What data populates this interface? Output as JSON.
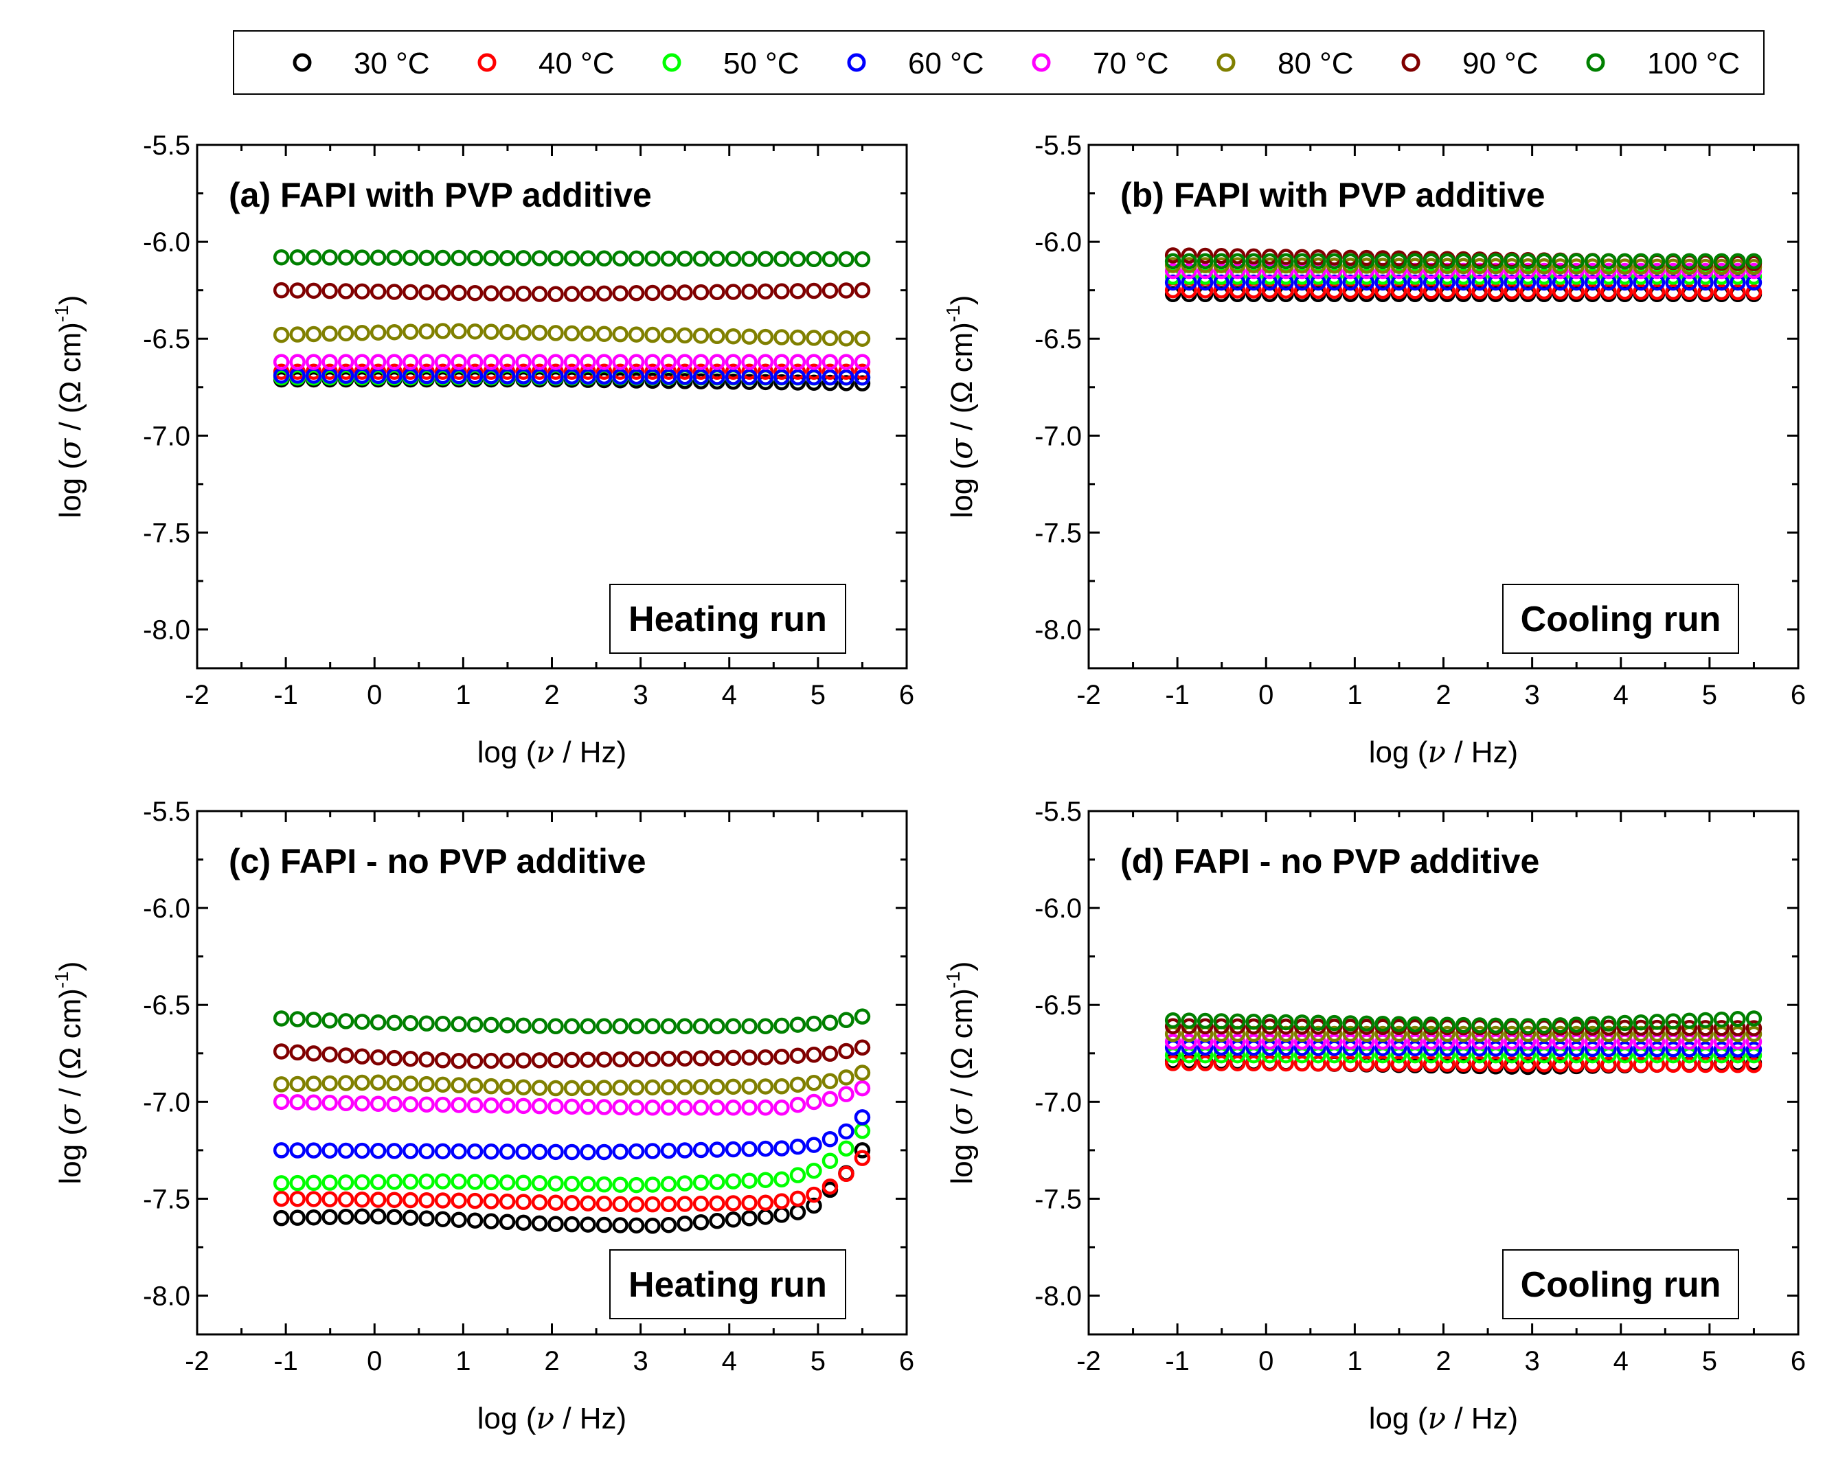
{
  "legend": {
    "entries": [
      {
        "label": "30 °C",
        "color": "#000000"
      },
      {
        "label": "40 °C",
        "color": "#ff0000"
      },
      {
        "label": "50 °C",
        "color": "#00ff00"
      },
      {
        "label": "60 °C",
        "color": "#0000ff"
      },
      {
        "label": "70 °C",
        "color": "#ff00ff"
      },
      {
        "label": "80 °C",
        "color": "#808000"
      },
      {
        "label": "90 °C",
        "color": "#800000"
      },
      {
        "label": "100 °C",
        "color": "#008000"
      }
    ]
  },
  "axis_titles": {
    "x_prefix": "log (",
    "x_symbol": "ν",
    "x_suffix": " / Hz)",
    "y_prefix": "log (",
    "y_symbol": "σ",
    "y_mid": " / (Ω cm)",
    "y_sup": "-1",
    "y_suffix": ")"
  },
  "chart_data": [
    {
      "type": "scatter",
      "title": "(a) FAPI with PVP additive",
      "annotation": "Heating run",
      "xlabel": "log (ν / Hz)",
      "ylabel": "log (σ / (Ω cm)-1)",
      "xlim": [
        -2,
        6
      ],
      "ylim": [
        -8.2,
        -5.5
      ],
      "x_ticks": [
        "-2",
        "-1",
        "0",
        "1",
        "2",
        "3",
        "4",
        "5",
        "6"
      ],
      "y_ticks": [
        "-5.5",
        "-6.0",
        "-6.5",
        "-7.0",
        "-7.5",
        "-8.0"
      ],
      "x_range": [
        -1.05,
        5.5
      ],
      "points_per_series": 37,
      "series": [
        {
          "name": "30 °C",
          "knots": [
            [
              -1.05,
              -6.71
            ],
            [
              2.0,
              -6.71
            ],
            [
              5.5,
              -6.73
            ]
          ]
        },
        {
          "name": "40 °C",
          "knots": [
            [
              -1.05,
              -6.67
            ],
            [
              5.5,
              -6.67
            ]
          ]
        },
        {
          "name": "50 °C",
          "knots": [
            [
              -1.05,
              -6.7
            ],
            [
              5.5,
              -6.7
            ]
          ]
        },
        {
          "name": "60 °C",
          "knots": [
            [
              -1.05,
              -6.69
            ],
            [
              5.5,
              -6.7
            ]
          ]
        },
        {
          "name": "70 °C",
          "knots": [
            [
              -1.05,
              -6.62
            ],
            [
              5.5,
              -6.62
            ]
          ]
        },
        {
          "name": "80 °C",
          "knots": [
            [
              -1.05,
              -6.48
            ],
            [
              0.8,
              -6.46
            ],
            [
              5.5,
              -6.5
            ]
          ]
        },
        {
          "name": "90 °C",
          "knots": [
            [
              -1.05,
              -6.25
            ],
            [
              2.0,
              -6.27
            ],
            [
              5.5,
              -6.25
            ]
          ]
        },
        {
          "name": "100 °C",
          "knots": [
            [
              -1.05,
              -6.08
            ],
            [
              5.5,
              -6.09
            ]
          ]
        }
      ]
    },
    {
      "type": "scatter",
      "title": "(b) FAPI with PVP additive",
      "annotation": "Cooling run",
      "xlabel": "log (ν / Hz)",
      "ylabel": "log (σ / (Ω cm)-1)",
      "xlim": [
        -2,
        6
      ],
      "ylim": [
        -8.2,
        -5.5
      ],
      "x_ticks": [
        "-2",
        "-1",
        "0",
        "1",
        "2",
        "3",
        "4",
        "5",
        "6"
      ],
      "y_ticks": [
        "-5.5",
        "-6.0",
        "-6.5",
        "-7.0",
        "-7.5",
        "-8.0"
      ],
      "x_range": [
        -1.05,
        5.5
      ],
      "points_per_series": 37,
      "series": [
        {
          "name": "30 °C",
          "knots": [
            [
              -1.05,
              -6.27
            ],
            [
              5.5,
              -6.27
            ]
          ]
        },
        {
          "name": "40 °C",
          "knots": [
            [
              -1.05,
              -6.25
            ],
            [
              5.5,
              -6.26
            ]
          ]
        },
        {
          "name": "50 °C",
          "knots": [
            [
              -1.05,
              -6.18
            ],
            [
              5.5,
              -6.18
            ]
          ]
        },
        {
          "name": "60 °C",
          "knots": [
            [
              -1.05,
              -6.21
            ],
            [
              5.5,
              -6.21
            ]
          ]
        },
        {
          "name": "70 °C",
          "knots": [
            [
              -1.05,
              -6.15
            ],
            [
              5.5,
              -6.15
            ]
          ]
        },
        {
          "name": "80 °C",
          "knots": [
            [
              -1.05,
              -6.12
            ],
            [
              5.5,
              -6.13
            ]
          ]
        },
        {
          "name": "90 °C",
          "knots": [
            [
              -1.05,
              -6.07
            ],
            [
              5.5,
              -6.11
            ]
          ]
        },
        {
          "name": "100 °C",
          "knots": [
            [
              -1.05,
              -6.1
            ],
            [
              5.5,
              -6.1
            ]
          ]
        }
      ]
    },
    {
      "type": "scatter",
      "title": "(c) FAPI - no PVP additive",
      "annotation": "Heating run",
      "xlabel": "log (ν / Hz)",
      "ylabel": "log (σ / (Ω cm)-1)",
      "xlim": [
        -2,
        6
      ],
      "ylim": [
        -8.2,
        -5.5
      ],
      "x_ticks": [
        "-2",
        "-1",
        "0",
        "1",
        "2",
        "3",
        "4",
        "5",
        "6"
      ],
      "y_ticks": [
        "-5.5",
        "-6.0",
        "-6.5",
        "-7.0",
        "-7.5",
        "-8.0"
      ],
      "x_range": [
        -1.05,
        5.5
      ],
      "points_per_series": 37,
      "series": [
        {
          "name": "30 °C",
          "knots": [
            [
              -1.05,
              -7.6
            ],
            [
              0.0,
              -7.59
            ],
            [
              2.0,
              -7.63
            ],
            [
              3.2,
              -7.64
            ],
            [
              4.5,
              -7.59
            ],
            [
              4.9,
              -7.56
            ],
            [
              5.1,
              -7.47
            ],
            [
              5.3,
              -7.38
            ],
            [
              5.5,
              -7.25
            ]
          ]
        },
        {
          "name": "40 °C",
          "knots": [
            [
              -1.05,
              -7.5
            ],
            [
              1.0,
              -7.51
            ],
            [
              3.0,
              -7.53
            ],
            [
              4.5,
              -7.52
            ],
            [
              4.9,
              -7.49
            ],
            [
              5.1,
              -7.45
            ],
            [
              5.3,
              -7.38
            ],
            [
              5.5,
              -7.29
            ]
          ]
        },
        {
          "name": "50 °C",
          "knots": [
            [
              -1.05,
              -7.42
            ],
            [
              0.8,
              -7.41
            ],
            [
              3.0,
              -7.43
            ],
            [
              4.6,
              -7.4
            ],
            [
              5.0,
              -7.35
            ],
            [
              5.3,
              -7.25
            ],
            [
              5.5,
              -7.15
            ]
          ]
        },
        {
          "name": "60 °C",
          "knots": [
            [
              -1.05,
              -7.25
            ],
            [
              2.5,
              -7.26
            ],
            [
              4.6,
              -7.24
            ],
            [
              5.0,
              -7.22
            ],
            [
              5.3,
              -7.16
            ],
            [
              5.5,
              -7.08
            ]
          ]
        },
        {
          "name": "70 °C",
          "knots": [
            [
              -1.05,
              -7.0
            ],
            [
              0.0,
              -7.01
            ],
            [
              3.0,
              -7.03
            ],
            [
              4.6,
              -7.03
            ],
            [
              5.2,
              -6.98
            ],
            [
              5.5,
              -6.93
            ]
          ]
        },
        {
          "name": "80 °C",
          "knots": [
            [
              -1.05,
              -6.91
            ],
            [
              0.0,
              -6.9
            ],
            [
              2.0,
              -6.93
            ],
            [
              4.6,
              -6.92
            ],
            [
              5.2,
              -6.89
            ],
            [
              5.5,
              -6.85
            ]
          ]
        },
        {
          "name": "90 °C",
          "knots": [
            [
              -1.05,
              -6.74
            ],
            [
              0.0,
              -6.77
            ],
            [
              1.0,
              -6.79
            ],
            [
              3.0,
              -6.78
            ],
            [
              4.5,
              -6.77
            ],
            [
              5.2,
              -6.75
            ],
            [
              5.5,
              -6.72
            ]
          ]
        },
        {
          "name": "100 °C",
          "knots": [
            [
              -1.05,
              -6.57
            ],
            [
              0.0,
              -6.59
            ],
            [
              2.0,
              -6.61
            ],
            [
              4.5,
              -6.61
            ],
            [
              5.2,
              -6.59
            ],
            [
              5.5,
              -6.56
            ]
          ]
        }
      ]
    },
    {
      "type": "scatter",
      "title": "(d) FAPI - no PVP additive",
      "annotation": "Cooling run",
      "xlabel": "log (ν / Hz)",
      "ylabel": "log (σ / (Ω cm)-1)",
      "xlim": [
        -2,
        6
      ],
      "ylim": [
        -8.2,
        -5.5
      ],
      "x_ticks": [
        "-2",
        "-1",
        "0",
        "1",
        "2",
        "3",
        "4",
        "5",
        "6"
      ],
      "y_ticks": [
        "-5.5",
        "-6.0",
        "-6.5",
        "-7.0",
        "-7.5",
        "-8.0"
      ],
      "x_range": [
        -1.05,
        5.5
      ],
      "points_per_series": 37,
      "series": [
        {
          "name": "30 °C",
          "knots": [
            [
              -1.05,
              -6.79
            ],
            [
              1.5,
              -6.81
            ],
            [
              3.0,
              -6.82
            ],
            [
              5.5,
              -6.8
            ]
          ]
        },
        {
          "name": "40 °C",
          "knots": [
            [
              -1.05,
              -6.8
            ],
            [
              5.5,
              -6.81
            ]
          ]
        },
        {
          "name": "50 °C",
          "knots": [
            [
              -1.05,
              -6.76
            ],
            [
              5.5,
              -6.76
            ]
          ]
        },
        {
          "name": "60 °C",
          "knots": [
            [
              -1.05,
              -6.72
            ],
            [
              5.5,
              -6.73
            ]
          ]
        },
        {
          "name": "70 °C",
          "knots": [
            [
              -1.05,
              -6.69
            ],
            [
              5.5,
              -6.69
            ]
          ]
        },
        {
          "name": "80 °C",
          "knots": [
            [
              -1.05,
              -6.65
            ],
            [
              5.5,
              -6.65
            ]
          ]
        },
        {
          "name": "90 °C",
          "knots": [
            [
              -1.05,
              -6.61
            ],
            [
              5.5,
              -6.62
            ]
          ]
        },
        {
          "name": "100 °C",
          "knots": [
            [
              -1.05,
              -6.58
            ],
            [
              3.0,
              -6.61
            ],
            [
              5.5,
              -6.57
            ]
          ]
        }
      ]
    }
  ]
}
